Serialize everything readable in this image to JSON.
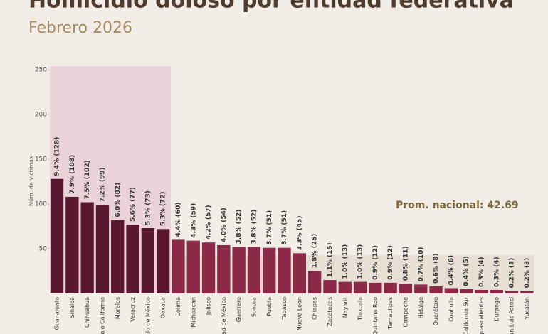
{
  "chart_data": {
    "type": "bar",
    "title": "Homicidio doloso por entidad federativa",
    "subtitle": "Febrero 2026",
    "y_label": "Núm. de víctimas",
    "annotation": "Prom. nacional: 42.69",
    "average": 42.69,
    "categories": [
      "Guanajuato",
      "Sinaloa",
      "Chihuahua",
      "Baja California",
      "Morelos",
      "Veracruz",
      "Estado de México",
      "Oaxaca",
      "Colima",
      "Michoacán",
      "Jalisco",
      "Ciudad de México",
      "Guerrero",
      "Sonora",
      "Puebla",
      "Tabasco",
      "Nuevo León",
      "Chiapas",
      "Zacatecas",
      "Nayarit",
      "Tlaxcala",
      "Quintana Roo",
      "Tamaulipas",
      "Campeche",
      "Hidalgo",
      "Querétaro",
      "Coahuila",
      "Baja California Sur",
      "Aguascalientes",
      "Durango",
      "San Luis Potosí",
      "Yucatán"
    ],
    "values": [
      128,
      108,
      102,
      99,
      82,
      77,
      73,
      72,
      60,
      59,
      57,
      54,
      52,
      52,
      51,
      51,
      45,
      25,
      15,
      13,
      13,
      12,
      12,
      11,
      10,
      8,
      6,
      5,
      4,
      4,
      3,
      3
    ],
    "value_labels": [
      "9.4% (128)",
      "7.9% (108)",
      "7.5% (102)",
      "7.2% (99)",
      "6.0% (82)",
      "5.6% (77)",
      "5.3% (73)",
      "5.3% (72)",
      "4.4% (60)",
      "4.3% (59)",
      "4.2% (57)",
      "4.0% (54)",
      "3.8% (52)",
      "3.8% (52)",
      "3.7% (51)",
      "3.7% (51)",
      "3.3% (45)",
      "1.8% (25)",
      "1.1% (15)",
      "1.0% (13)",
      "1.0% (13)",
      "0.9% (12)",
      "0.9% (12)",
      "0.8% (11)",
      "0.7% (10)",
      "0.6% (8)",
      "0.4% (6)",
      "0.4% (5)",
      "0.3% (4)",
      "0.3% (4)",
      "0.2% (3)",
      "0.2% (3)"
    ],
    "colors": [
      "#5a1830",
      "#5a1830",
      "#5a1830",
      "#5a1830",
      "#5a1830",
      "#5a1830",
      "#5a1830",
      "#5a1830",
      "#8b2a48",
      "#8b2a48",
      "#8b2a48",
      "#8b2a48",
      "#8b2a48",
      "#8b2a48",
      "#8b2a48",
      "#8b2a48",
      "#8b2a48",
      "#8b2a48",
      "#8b2a48",
      "#8b2a48",
      "#8b2a48",
      "#8b2a48",
      "#8b2a48",
      "#8b2a48",
      "#8b2a48",
      "#8b2a48",
      "#8b2a48",
      "#8b2a48",
      "#8b2a48",
      "#8b2a48",
      "#8b2a48",
      "#8b2a48"
    ],
    "ylim": [
      0,
      250
    ],
    "yticks": [
      50,
      100,
      150,
      200,
      250
    ],
    "grid": false
  }
}
